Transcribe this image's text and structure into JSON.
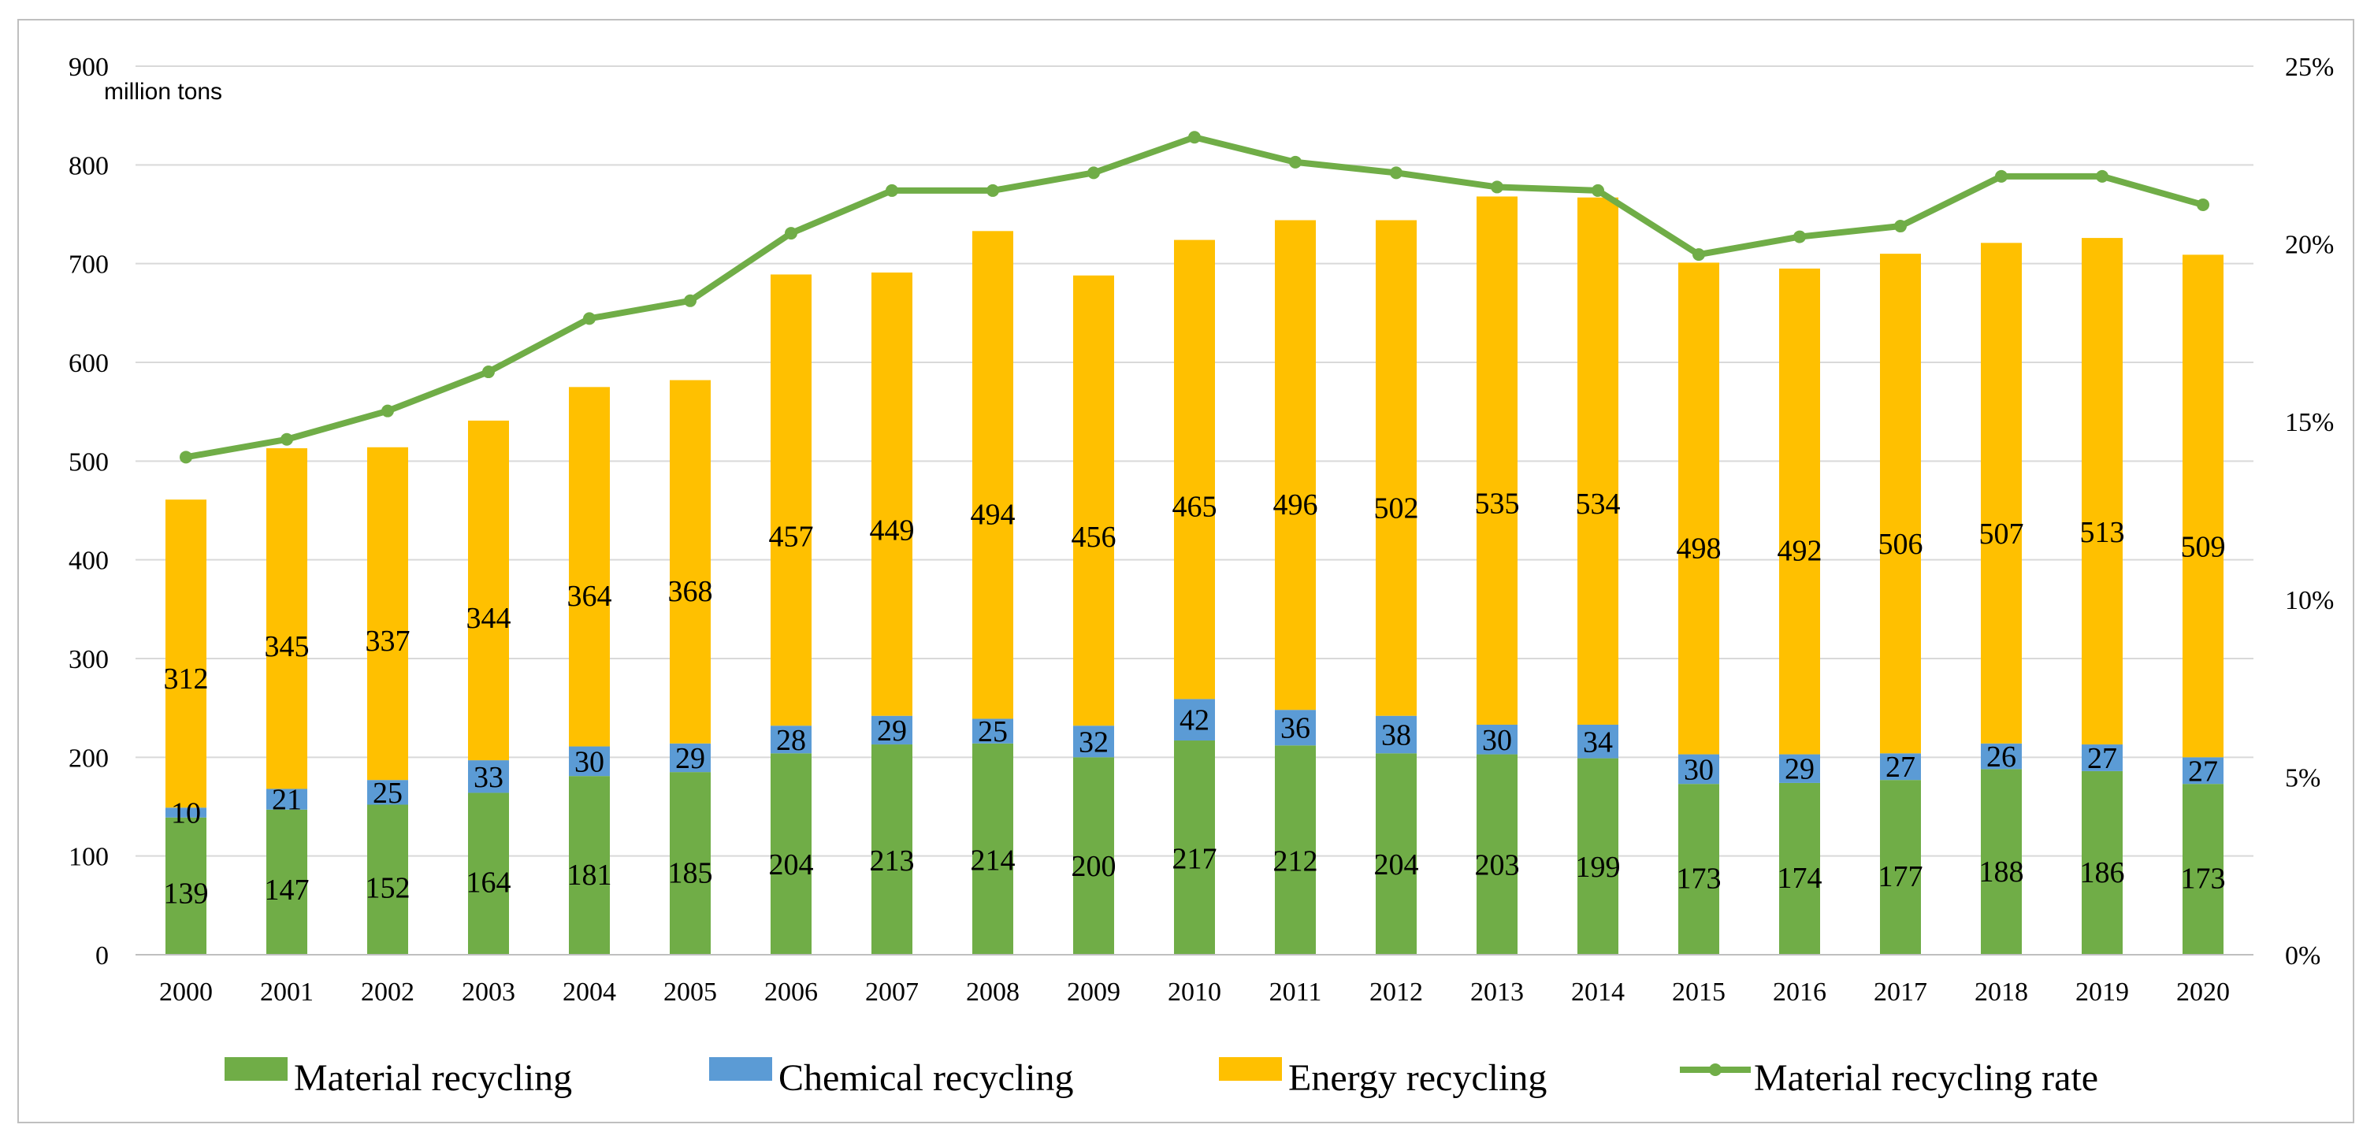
{
  "chart_data": {
    "type": "bar",
    "stacked": true,
    "title": "",
    "y_unit_label": "million tons",
    "ylim": [
      0,
      900
    ],
    "y_ticks": [
      "0",
      "100",
      "200",
      "300",
      "400",
      "500",
      "600",
      "700",
      "800",
      "900"
    ],
    "y2lim": [
      0,
      25
    ],
    "y2_ticks": [
      "0%",
      "5%",
      "10%",
      "15%",
      "20%",
      "25%"
    ],
    "grid": true,
    "legend_position": "bottom",
    "categories": [
      "2000",
      "2001",
      "2002",
      "2003",
      "2004",
      "2005",
      "2006",
      "2007",
      "2008",
      "2009",
      "2010",
      "2011",
      "2012",
      "2013",
      "2014",
      "2015",
      "2016",
      "2017",
      "2018",
      "2019",
      "2020"
    ],
    "series": [
      {
        "name": "Material recycling",
        "color": "#70ad47",
        "values": [
          139,
          147,
          152,
          164,
          181,
          185,
          204,
          213,
          214,
          200,
          217,
          212,
          204,
          203,
          199,
          173,
          174,
          177,
          188,
          186,
          173
        ]
      },
      {
        "name": "Chemical recycling",
        "color": "#5b9bd5",
        "values": [
          10,
          21,
          25,
          33,
          30,
          29,
          28,
          29,
          25,
          32,
          42,
          36,
          38,
          30,
          34,
          30,
          29,
          27,
          26,
          27,
          27
        ]
      },
      {
        "name": "Energy recycling",
        "color": "#ffc000",
        "values": [
          312,
          345,
          337,
          344,
          364,
          368,
          457,
          449,
          494,
          456,
          465,
          496,
          502,
          535,
          534,
          498,
          492,
          506,
          507,
          513,
          509
        ]
      }
    ],
    "line_series": {
      "name": "Material recycling rate",
      "color": "#70ad47",
      "axis": "right",
      "unit": "%",
      "values": [
        14.0,
        14.5,
        15.3,
        16.4,
        17.9,
        18.4,
        20.3,
        21.5,
        21.5,
        22.0,
        23.0,
        22.3,
        22.0,
        21.6,
        21.5,
        19.7,
        20.2,
        20.5,
        21.9,
        21.9,
        21.1
      ]
    }
  }
}
